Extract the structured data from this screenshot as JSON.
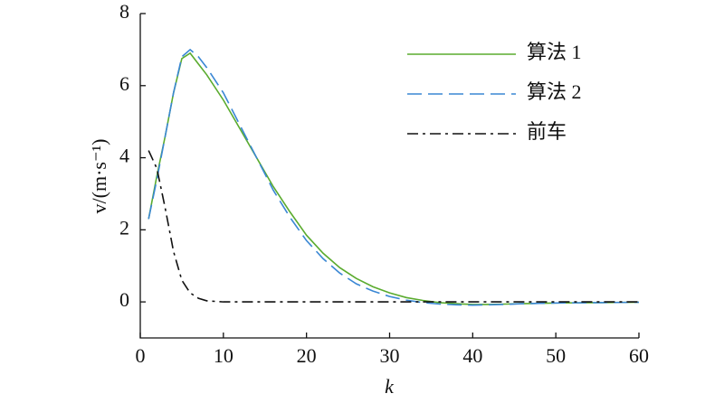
{
  "chart_data": {
    "type": "line",
    "xlabel": "k",
    "ylabel": "v/(m·s⁻¹)",
    "x": [
      1,
      2,
      3,
      4,
      5,
      6,
      7,
      8,
      10,
      12,
      14,
      16,
      18,
      20,
      22,
      24,
      26,
      28,
      30,
      32,
      34,
      36,
      38,
      40,
      42,
      44,
      46,
      48,
      50,
      55,
      60
    ],
    "series": [
      {
        "name": "算法 1",
        "color": "#5aab2e",
        "dash": "solid",
        "values": [
          2.3,
          3.5,
          4.6,
          5.8,
          6.75,
          6.9,
          6.6,
          6.3,
          5.6,
          4.8,
          4.0,
          3.2,
          2.5,
          1.85,
          1.35,
          0.95,
          0.65,
          0.42,
          0.25,
          0.12,
          0.04,
          -0.02,
          -0.05,
          -0.07,
          -0.07,
          -0.06,
          -0.05,
          -0.04,
          -0.03,
          -0.02,
          -0.01
        ]
      },
      {
        "name": "算法 2",
        "color": "#3a87d4",
        "dash": "dashed",
        "values": [
          2.3,
          3.4,
          4.6,
          5.8,
          6.8,
          7.0,
          6.8,
          6.5,
          5.8,
          4.9,
          4.0,
          3.1,
          2.35,
          1.7,
          1.2,
          0.8,
          0.5,
          0.3,
          0.15,
          0.05,
          -0.02,
          -0.06,
          -0.08,
          -0.09,
          -0.08,
          -0.07,
          -0.05,
          -0.04,
          -0.03,
          -0.02,
          -0.01
        ]
      },
      {
        "name": "前车",
        "color": "#111111",
        "dash": "dashdot",
        "values": [
          4.2,
          3.7,
          2.6,
          1.4,
          0.6,
          0.25,
          0.1,
          0.03,
          0,
          0,
          0,
          0,
          0,
          0,
          0,
          0,
          0,
          0,
          0,
          0,
          0,
          0,
          0,
          0,
          0,
          0,
          0,
          0,
          0,
          0,
          0
        ]
      }
    ],
    "xlim": [
      0,
      60
    ],
    "xticks": [
      0,
      10,
      20,
      30,
      40,
      50,
      60
    ],
    "ylim": [
      -1,
      8
    ],
    "yticks": [
      0,
      2,
      4,
      6,
      8
    ],
    "legend": "upper right"
  }
}
